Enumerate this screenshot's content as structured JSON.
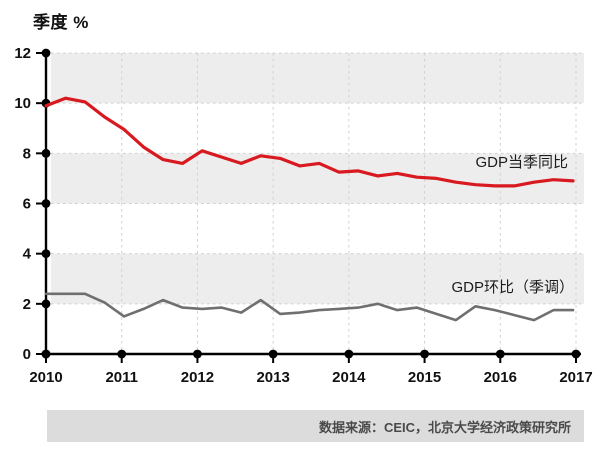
{
  "title": "季度 %",
  "footer": {
    "source_text": "数据来源：CEIC，北京大学经济政策研究所"
  },
  "chart_data": {
    "type": "line",
    "title": "季度 %",
    "xlabel": "",
    "ylabel": "季度 %",
    "ylim": [
      0,
      12
    ],
    "yticks": [
      0,
      2,
      4,
      6,
      8,
      10,
      12
    ],
    "x_labels": [
      "2010",
      "2011",
      "2012",
      "2013",
      "2014",
      "2015",
      "2016",
      "2017"
    ],
    "x_unit": "quarterly, 2010Q1 - 2016Q4",
    "grid": "dashed gridlines at even values and at each year; alternating gray/white horizontal bands of 2 units",
    "legend_position": "labels inline at right of lines",
    "colors": {
      "band_gray": "#ededed",
      "grid": "#cfcfcf",
      "axis": "#000000",
      "red_series": "#d8191f",
      "gray_series": "#6f6f6f",
      "footer_bar": "#dcdcdc",
      "footer_text": "#4a4a4a"
    },
    "series": [
      {
        "name": "GDP当季同比",
        "color": "#d8191f",
        "values": [
          9.9,
          10.2,
          10.05,
          9.45,
          8.95,
          8.25,
          7.75,
          7.6,
          8.1,
          7.85,
          7.6,
          7.9,
          7.8,
          7.5,
          7.6,
          7.25,
          7.3,
          7.1,
          7.2,
          7.05,
          7.0,
          6.85,
          6.75,
          6.7,
          6.7,
          6.85,
          6.95,
          6.9
        ]
      },
      {
        "name": "GDP环比（季调）",
        "color": "#6f6f6f",
        "values": [
          2.4,
          2.4,
          2.4,
          2.05,
          1.5,
          1.8,
          2.15,
          1.85,
          1.8,
          1.85,
          1.65,
          2.15,
          1.6,
          1.65,
          1.75,
          1.8,
          1.85,
          2.0,
          1.75,
          1.85,
          1.6,
          1.35,
          1.9,
          1.75,
          1.55,
          1.35,
          1.75,
          1.75
        ]
      }
    ]
  }
}
